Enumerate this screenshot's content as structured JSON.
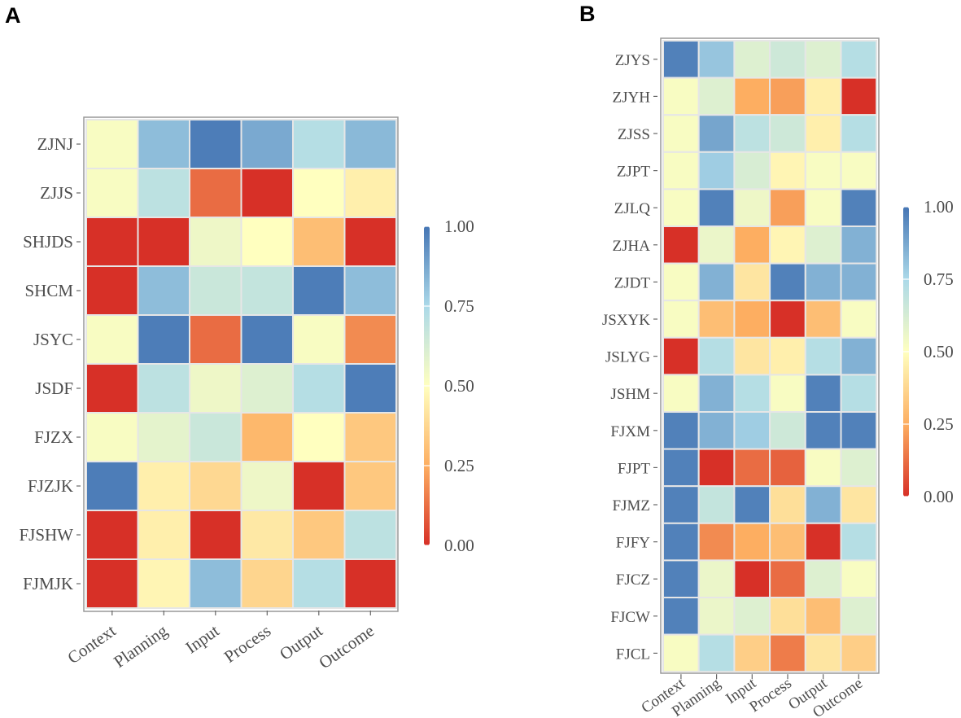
{
  "panels": [
    {
      "id": "A",
      "label": "A",
      "chart_data": {
        "type": "heatmap",
        "title": "",
        "xlabel": "",
        "ylabel": "",
        "columns": [
          "Context",
          "Planning",
          "Input",
          "Process",
          "Output",
          "Outcome"
        ],
        "rows": [
          "ZJNJ",
          "ZJJS",
          "SHJDS",
          "SHCM",
          "JSYC",
          "JSDF",
          "FJZX",
          "FJZJK",
          "FJSHW",
          "FJMJK"
        ],
        "values": [
          [
            0.52,
            0.82,
            0.98,
            0.87,
            0.72,
            0.83
          ],
          [
            0.52,
            0.7,
            0.12,
            0.0,
            0.5,
            0.45
          ],
          [
            0.0,
            0.0,
            0.55,
            0.5,
            0.3,
            0.0
          ],
          [
            0.0,
            0.82,
            0.66,
            0.68,
            0.98,
            0.82
          ],
          [
            0.52,
            0.98,
            0.12,
            0.98,
            0.52,
            0.18
          ],
          [
            0.0,
            0.7,
            0.55,
            0.6,
            0.72,
            0.98
          ],
          [
            0.52,
            0.58,
            0.66,
            0.28,
            0.5,
            0.33
          ],
          [
            0.98,
            0.45,
            0.38,
            0.55,
            0.0,
            0.33
          ],
          [
            0.0,
            0.45,
            0.0,
            0.43,
            0.33,
            0.7
          ],
          [
            0.0,
            0.47,
            0.82,
            0.37,
            0.72,
            0.0
          ]
        ],
        "colorbar": {
          "ticks": [
            "1.00",
            "0.75",
            "0.50",
            "0.25",
            "0.00"
          ],
          "range": [
            0,
            1
          ]
        }
      }
    },
    {
      "id": "B",
      "label": "B",
      "chart_data": {
        "type": "heatmap",
        "title": "",
        "xlabel": "",
        "ylabel": "",
        "columns": [
          "Context",
          "Planning",
          "Input",
          "Process",
          "Output",
          "Outcome"
        ],
        "rows": [
          "ZJYS",
          "ZJYH",
          "ZJSS",
          "ZJPT",
          "ZJLQ",
          "ZJHA",
          "ZJDT",
          "JSXYK",
          "JSLYG",
          "JSHM",
          "FJXM",
          "FJPT",
          "FJMZ",
          "FJFY",
          "FJCZ",
          "FJCW",
          "FJCL"
        ],
        "values": [
          [
            0.97,
            0.8,
            0.6,
            0.65,
            0.6,
            0.72
          ],
          [
            0.52,
            0.6,
            0.25,
            0.22,
            0.45,
            0.0
          ],
          [
            0.52,
            0.88,
            0.7,
            0.65,
            0.45,
            0.72
          ],
          [
            0.52,
            0.78,
            0.62,
            0.47,
            0.52,
            0.52
          ],
          [
            0.52,
            0.97,
            0.55,
            0.22,
            0.52,
            0.97
          ],
          [
            0.0,
            0.56,
            0.25,
            0.47,
            0.6,
            0.85
          ],
          [
            0.52,
            0.85,
            0.42,
            0.97,
            0.85,
            0.85
          ],
          [
            0.52,
            0.3,
            0.25,
            0.0,
            0.3,
            0.52
          ],
          [
            0.0,
            0.72,
            0.42,
            0.45,
            0.72,
            0.85
          ],
          [
            0.52,
            0.85,
            0.72,
            0.52,
            0.97,
            0.72
          ],
          [
            0.97,
            0.85,
            0.78,
            0.65,
            0.97,
            0.97
          ],
          [
            0.97,
            0.0,
            0.12,
            0.1,
            0.52,
            0.6
          ],
          [
            0.97,
            0.68,
            0.97,
            0.4,
            0.85,
            0.42
          ],
          [
            0.97,
            0.18,
            0.25,
            0.3,
            0.0,
            0.72
          ],
          [
            0.97,
            0.56,
            0.0,
            0.12,
            0.6,
            0.52
          ],
          [
            0.97,
            0.56,
            0.6,
            0.4,
            0.3,
            0.6
          ],
          [
            0.52,
            0.72,
            0.35,
            0.15,
            0.42,
            0.35
          ]
        ],
        "colorbar": {
          "ticks": [
            "1.00",
            "0.75",
            "0.50",
            "0.25",
            "0.00"
          ],
          "range": [
            0,
            1
          ]
        }
      }
    }
  ],
  "colors": {
    "low": "#d73027",
    "mid_low": "#fdae61",
    "mid": "#ffffbf",
    "mid_high": "#abd9e9",
    "high": "#4575b4",
    "cell_border": "#e6e6e6",
    "frame": "#999999",
    "tick_text": "#4d4d4d"
  }
}
